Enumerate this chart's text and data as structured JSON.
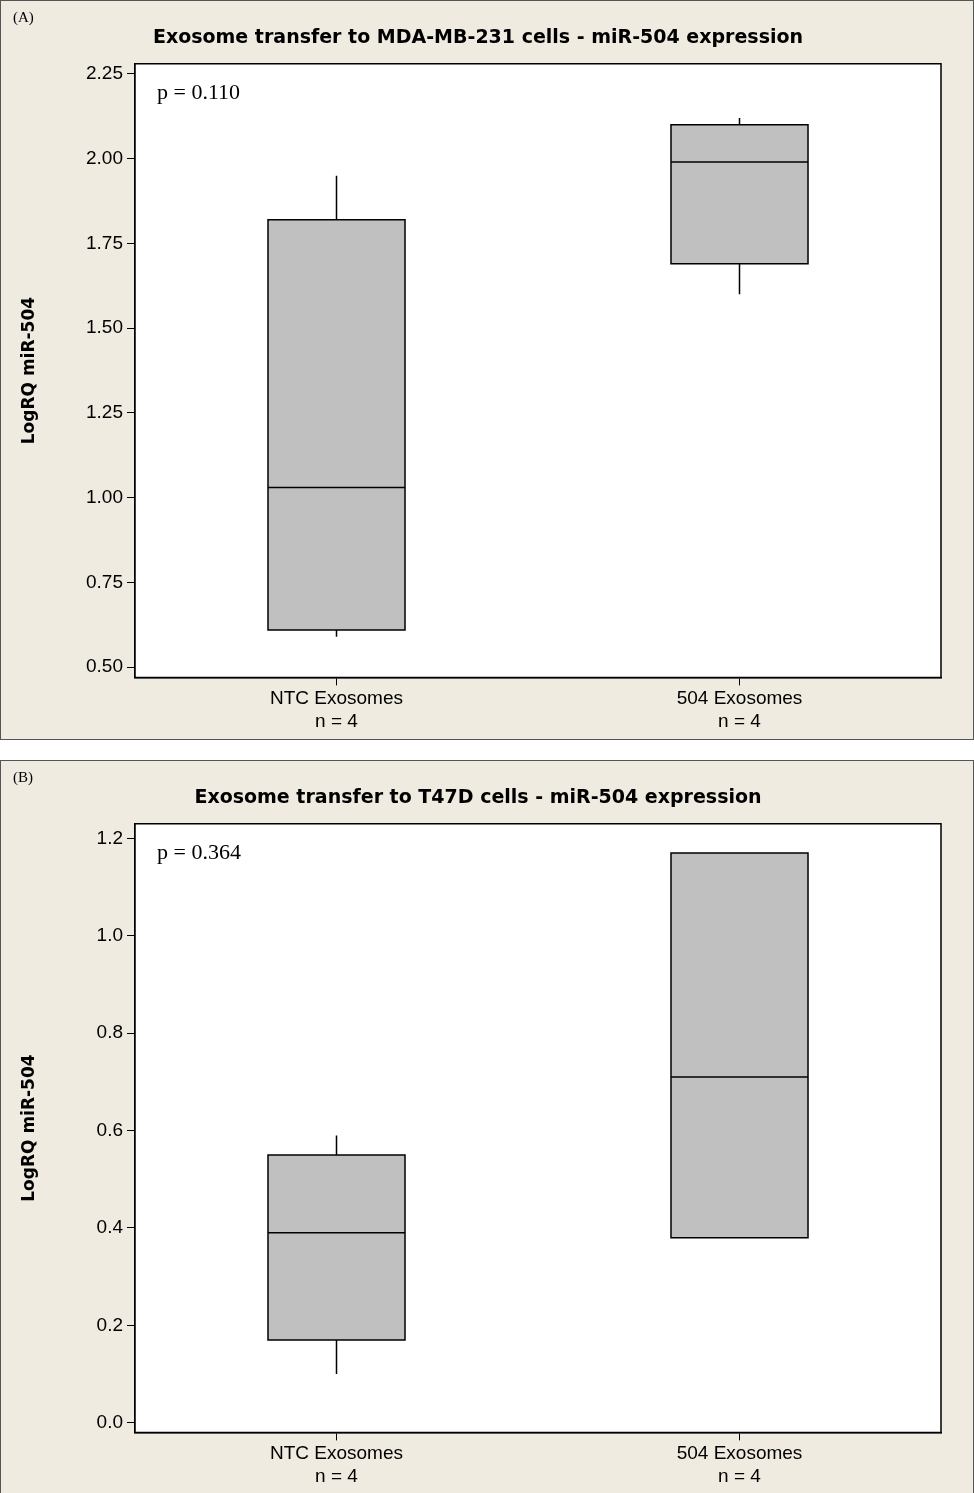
{
  "chart_data": [
    {
      "type": "box",
      "title": "Exosome transfer to MDA-MB-231 cells - miR-504 expression",
      "ylabel": "LogRQ miR-504",
      "categories": [
        "NTC Exosomes\nn = 4",
        "504 Exosomes\nn = 4"
      ],
      "color": "#c0c0c0",
      "boxes": [
        {
          "low": 0.59,
          "q1": 0.61,
          "median": 1.03,
          "q3": 1.82,
          "high": 1.95
        },
        {
          "low": 1.6,
          "q1": 1.69,
          "median": 1.99,
          "q3": 2.1,
          "high": 2.12
        }
      ],
      "ylim": [
        0.47,
        2.28
      ],
      "yticks": [
        {
          "value": 0.5,
          "label": "0.50"
        },
        0.75,
        {
          "value": 1,
          "label": "1.00"
        },
        1.25,
        {
          "value": 1.5,
          "label": "1.50"
        },
        1.75,
        {
          "value": 2,
          "label": "2.00"
        },
        2.25
      ],
      "annotations": [
        "(A)",
        "p = 0.110"
      ]
    },
    {
      "type": "box",
      "title": "Exosome transfer to T47D cells - miR-504 expression",
      "ylabel": "LogRQ miR-504",
      "categories": [
        "NTC Exosomes\nn = 4",
        "504 Exosomes\nn = 4"
      ],
      "color": "#c0c0c0",
      "boxes": [
        {
          "low": 0.1,
          "q1": 0.17,
          "median": 0.39,
          "q3": 0.55,
          "high": 0.59
        },
        {
          "low": 0.38,
          "q1": 0.38,
          "median": 0.71,
          "q3": 1.17,
          "high": 1.17
        }
      ],
      "ylim": [
        -0.02,
        1.23
      ],
      "yticks": [
        {
          "value": 0,
          "label": "0.0"
        },
        0.2,
        0.4,
        0.6,
        0.8,
        {
          "value": 1,
          "label": "1.0"
        },
        1.2
      ],
      "annotations": [
        "(B)",
        "p = 0.364"
      ]
    }
  ]
}
